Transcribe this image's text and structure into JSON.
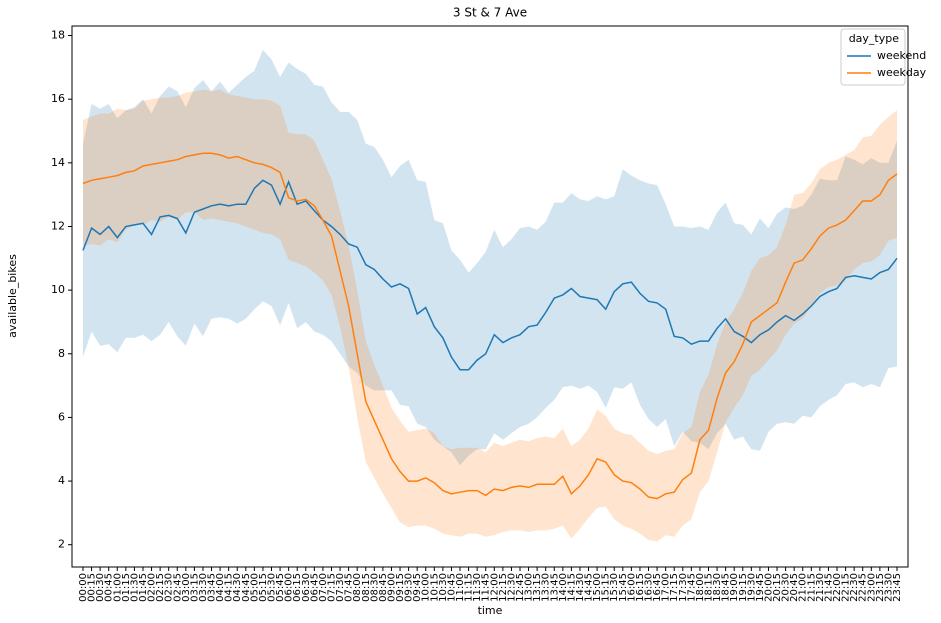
{
  "chart_data": {
    "type": "line",
    "title": "3 St & 7 Ave",
    "xlabel": "time",
    "ylabel": "available_bikes",
    "categories": [
      "00:00",
      "00:15",
      "00:30",
      "00:45",
      "01:00",
      "01:15",
      "01:30",
      "01:45",
      "02:00",
      "02:15",
      "02:30",
      "02:45",
      "03:00",
      "03:15",
      "03:30",
      "03:45",
      "04:00",
      "04:15",
      "04:30",
      "04:45",
      "05:00",
      "05:15",
      "05:30",
      "05:45",
      "06:00",
      "06:15",
      "06:30",
      "06:45",
      "07:00",
      "07:15",
      "07:30",
      "07:45",
      "08:00",
      "08:15",
      "08:30",
      "08:45",
      "09:00",
      "09:15",
      "09:30",
      "09:45",
      "10:00",
      "10:15",
      "10:30",
      "10:45",
      "11:00",
      "11:15",
      "11:30",
      "11:45",
      "12:00",
      "12:15",
      "12:30",
      "12:45",
      "13:00",
      "13:15",
      "13:30",
      "13:45",
      "14:00",
      "14:15",
      "14:30",
      "14:45",
      "15:00",
      "15:15",
      "15:30",
      "15:45",
      "16:00",
      "16:15",
      "16:30",
      "16:45",
      "17:00",
      "17:15",
      "17:30",
      "17:45",
      "18:00",
      "18:15",
      "18:30",
      "18:45",
      "19:00",
      "19:15",
      "19:30",
      "19:45",
      "20:00",
      "20:15",
      "20:30",
      "20:45",
      "21:00",
      "21:15",
      "21:30",
      "21:45",
      "22:00",
      "22:15",
      "22:30",
      "22:45",
      "23:00",
      "23:15",
      "23:30",
      "23:45"
    ],
    "legend_title": "day_type",
    "legend": "upper right",
    "ylim": [
      1.3,
      18.3
    ],
    "yticks": [
      2,
      4,
      6,
      8,
      10,
      12,
      14,
      16,
      18
    ],
    "series": [
      {
        "name": "weekend",
        "color": "#1f77b4",
        "values": [
          11.25,
          11.95,
          11.75,
          12.0,
          11.65,
          12.0,
          12.05,
          12.1,
          11.75,
          12.3,
          12.35,
          12.25,
          11.8,
          12.45,
          12.55,
          12.65,
          12.7,
          12.65,
          12.7,
          12.7,
          13.2,
          13.45,
          13.3,
          12.7,
          13.4,
          12.7,
          12.8,
          12.5,
          12.2,
          12.0,
          11.75,
          11.45,
          11.35,
          10.8,
          10.65,
          10.35,
          10.1,
          10.2,
          10.05,
          9.25,
          9.45,
          8.85,
          8.5,
          7.9,
          7.5,
          7.5,
          7.8,
          8.0,
          8.6,
          8.35,
          8.5,
          8.6,
          8.85,
          8.9,
          9.3,
          9.75,
          9.85,
          10.05,
          9.8,
          9.75,
          9.7,
          9.4,
          9.95,
          10.2,
          10.25,
          9.9,
          9.65,
          9.6,
          9.4,
          8.55,
          8.5,
          8.3,
          8.4,
          8.4,
          8.8,
          9.1,
          8.7,
          8.55,
          8.35,
          8.6,
          8.75,
          9.0,
          9.2,
          9.05,
          9.25,
          9.5,
          9.8,
          9.95,
          10.05,
          10.4,
          10.45,
          10.4,
          10.35,
          10.55,
          10.65,
          11.0
        ],
        "lower": [
          7.9,
          8.7,
          8.25,
          8.3,
          8.05,
          8.5,
          8.5,
          8.6,
          8.4,
          8.6,
          9.0,
          8.55,
          8.25,
          8.95,
          8.55,
          9.1,
          9.15,
          9.1,
          8.95,
          9.1,
          9.4,
          9.65,
          9.5,
          8.9,
          9.6,
          8.8,
          9.0,
          8.7,
          8.6,
          8.4,
          8.0,
          7.6,
          7.4,
          7.0,
          6.85,
          6.85,
          6.85,
          6.4,
          6.35,
          5.8,
          5.7,
          5.3,
          5.1,
          4.9,
          4.5,
          4.8,
          5.0,
          5.0,
          5.5,
          5.3,
          5.5,
          5.7,
          5.8,
          6.0,
          6.3,
          6.55,
          6.95,
          7.0,
          6.9,
          7.0,
          6.8,
          6.3,
          6.95,
          6.9,
          7.1,
          6.4,
          5.95,
          5.7,
          5.95,
          5.1,
          5.55,
          5.25,
          5.2,
          5.0,
          5.5,
          5.8,
          5.3,
          5.4,
          5.0,
          4.95,
          5.55,
          5.8,
          5.85,
          5.8,
          6.05,
          6.0,
          6.35,
          6.55,
          6.7,
          7.05,
          7.1,
          6.95,
          7.05,
          6.95,
          7.55,
          7.6
        ],
        "upper": [
          14.6,
          15.85,
          15.7,
          15.85,
          15.4,
          15.65,
          15.75,
          16.0,
          15.55,
          16.1,
          16.4,
          16.25,
          15.75,
          16.35,
          16.6,
          16.25,
          16.55,
          16.2,
          16.45,
          16.7,
          16.9,
          17.55,
          17.25,
          16.7,
          17.15,
          16.95,
          16.8,
          16.45,
          16.4,
          15.9,
          15.6,
          15.6,
          15.35,
          14.6,
          14.5,
          14.1,
          13.55,
          13.9,
          14.1,
          13.45,
          13.4,
          12.2,
          12.1,
          11.25,
          10.95,
          10.55,
          10.85,
          11.2,
          11.9,
          11.35,
          11.6,
          11.95,
          12.0,
          11.9,
          12.15,
          12.75,
          12.75,
          13.05,
          12.85,
          12.8,
          12.95,
          12.85,
          12.95,
          13.8,
          13.6,
          13.45,
          13.35,
          13.3,
          12.7,
          12.0,
          12.0,
          11.95,
          12.0,
          11.9,
          12.45,
          12.75,
          12.1,
          12.05,
          11.75,
          12.25,
          11.95,
          12.4,
          12.6,
          12.55,
          12.65,
          13.0,
          13.5,
          13.45,
          13.45,
          14.2,
          14.1,
          13.95,
          14.15,
          14.0,
          14.0,
          14.7
        ]
      },
      {
        "name": "weekday",
        "color": "#ff7f0e",
        "values": [
          13.35,
          13.45,
          13.5,
          13.55,
          13.6,
          13.7,
          13.75,
          13.9,
          13.95,
          14.0,
          14.05,
          14.1,
          14.2,
          14.25,
          14.3,
          14.3,
          14.25,
          14.15,
          14.2,
          14.1,
          14.0,
          13.95,
          13.85,
          13.7,
          12.9,
          12.8,
          12.85,
          12.65,
          12.2,
          11.7,
          10.6,
          9.5,
          8.0,
          6.5,
          5.9,
          5.3,
          4.7,
          4.3,
          4.0,
          4.0,
          4.1,
          3.95,
          3.7,
          3.6,
          3.65,
          3.7,
          3.7,
          3.55,
          3.75,
          3.7,
          3.8,
          3.85,
          3.8,
          3.9,
          3.9,
          3.9,
          4.15,
          3.6,
          3.85,
          4.2,
          4.7,
          4.6,
          4.2,
          4.0,
          3.95,
          3.75,
          3.5,
          3.45,
          3.6,
          3.65,
          4.05,
          4.25,
          5.3,
          5.6,
          6.6,
          7.4,
          7.75,
          8.3,
          9.0,
          9.2,
          9.4,
          9.6,
          10.25,
          10.85,
          10.95,
          11.3,
          11.7,
          11.95,
          12.05,
          12.2,
          12.5,
          12.8,
          12.8,
          13.0,
          13.45,
          13.65
        ],
        "lower": [
          11.4,
          11.45,
          11.4,
          11.6,
          11.5,
          11.9,
          12.05,
          12.05,
          12.2,
          12.15,
          12.3,
          12.2,
          12.45,
          12.45,
          12.2,
          12.25,
          12.2,
          12.15,
          12.1,
          12.0,
          11.9,
          11.8,
          11.75,
          11.6,
          10.95,
          10.85,
          10.75,
          10.55,
          10.3,
          9.85,
          8.85,
          7.6,
          6.0,
          4.6,
          4.1,
          3.6,
          3.15,
          2.7,
          2.55,
          2.6,
          2.6,
          2.5,
          2.35,
          2.3,
          2.25,
          2.35,
          2.35,
          2.25,
          2.3,
          2.4,
          2.45,
          2.45,
          2.4,
          2.45,
          2.45,
          2.5,
          2.6,
          2.2,
          2.5,
          2.85,
          3.15,
          3.2,
          2.8,
          2.6,
          2.5,
          2.35,
          2.15,
          2.1,
          2.3,
          2.25,
          2.6,
          2.8,
          3.65,
          4.0,
          4.9,
          5.85,
          6.3,
          6.7,
          7.3,
          7.5,
          7.8,
          8.1,
          8.6,
          8.95,
          9.1,
          9.5,
          9.9,
          10.1,
          10.15,
          10.3,
          10.65,
          10.85,
          10.9,
          11.1,
          11.55,
          11.65
        ],
        "upper": [
          15.35,
          15.45,
          15.55,
          15.55,
          15.7,
          15.65,
          15.7,
          15.95,
          16.0,
          16.05,
          16.05,
          16.1,
          16.2,
          16.25,
          16.3,
          16.25,
          16.3,
          16.15,
          16.1,
          16.05,
          16.0,
          16.0,
          15.95,
          15.8,
          14.95,
          14.9,
          14.9,
          14.7,
          14.1,
          13.5,
          12.5,
          11.4,
          10.0,
          8.4,
          7.65,
          7.0,
          6.3,
          5.9,
          5.55,
          5.6,
          5.65,
          5.5,
          5.1,
          5.0,
          5.05,
          5.05,
          5.05,
          4.9,
          5.2,
          5.1,
          5.2,
          5.3,
          5.25,
          5.35,
          5.4,
          5.35,
          5.65,
          5.1,
          5.3,
          5.65,
          6.25,
          6.05,
          5.65,
          5.5,
          5.45,
          5.2,
          4.95,
          4.85,
          4.95,
          5.0,
          5.5,
          5.7,
          6.8,
          7.35,
          8.3,
          9.0,
          9.4,
          9.9,
          10.6,
          11.0,
          11.1,
          11.35,
          12.05,
          13.0,
          13.05,
          13.35,
          13.8,
          14.0,
          14.1,
          14.25,
          14.4,
          14.8,
          14.85,
          15.2,
          15.45,
          15.65
        ]
      }
    ]
  }
}
